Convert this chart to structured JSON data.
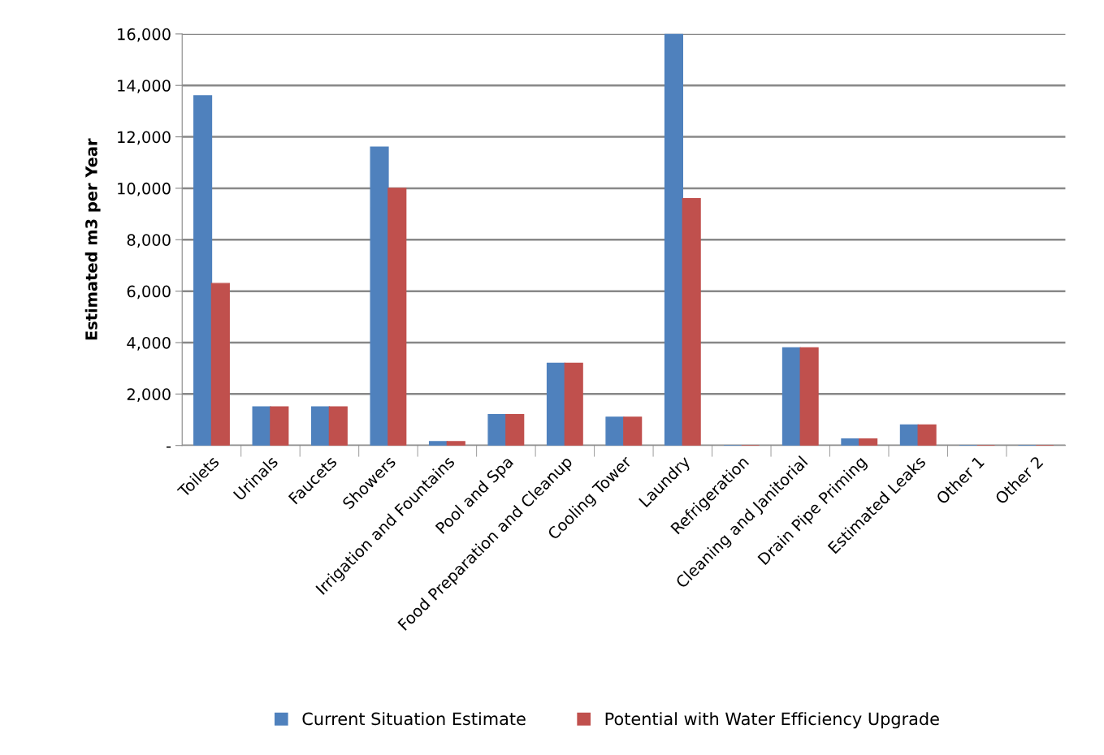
{
  "chart_data": {
    "type": "bar",
    "ylabel": "Estimated m3 per Year",
    "categories": [
      "Toilets",
      "Urinals",
      "Faucets",
      "Showers",
      "Irrigation and Fountains",
      "Pool and Spa",
      "Food Preparation and Cleanup",
      "Cooling Tower",
      "Laundry",
      "Refrigeration",
      "Cleaning and Janitorial",
      "Drain Pipe Priming",
      "Estimated Leaks",
      "Other 1",
      "Other 2"
    ],
    "series": [
      {
        "name": "Current Situation Estimate",
        "color": "#4f81bd",
        "values": [
          13600,
          1500,
          1500,
          11600,
          150,
          1200,
          3200,
          1100,
          16000,
          0,
          3800,
          250,
          800,
          0,
          0
        ]
      },
      {
        "name": "Potential with Water Efficiency Upgrade",
        "color": "#c0504d",
        "values": [
          6300,
          1500,
          1500,
          10000,
          150,
          1200,
          3200,
          1100,
          9600,
          0,
          3800,
          250,
          800,
          0,
          0
        ]
      }
    ],
    "ylim": [
      0,
      16000
    ],
    "yticks": [
      {
        "value": 0,
        "label": "-"
      },
      {
        "value": 2000,
        "label": "2,000"
      },
      {
        "value": 4000,
        "label": "4,000"
      },
      {
        "value": 6000,
        "label": "6,000"
      },
      {
        "value": 8000,
        "label": "8,000"
      },
      {
        "value": 10000,
        "label": "10,000"
      },
      {
        "value": 12000,
        "label": "12,000"
      },
      {
        "value": 14000,
        "label": "14,000"
      },
      {
        "value": 16000,
        "label": "16,000"
      }
    ],
    "grid": "y",
    "legend": "bottom"
  }
}
